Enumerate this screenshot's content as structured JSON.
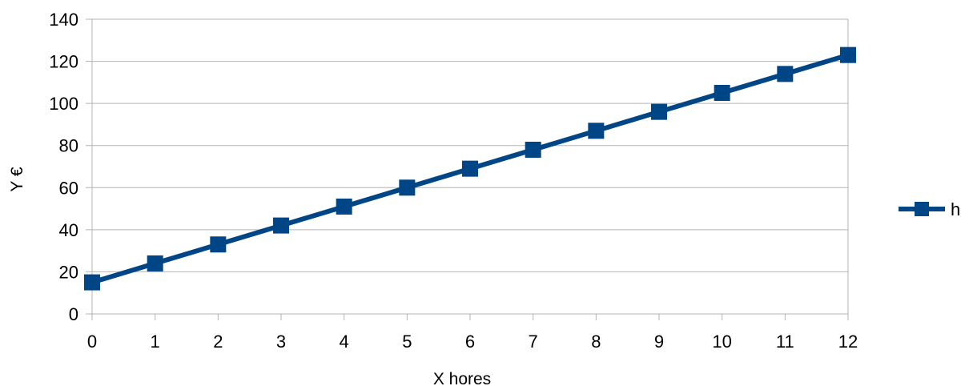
{
  "chart_data": {
    "type": "line",
    "title": "",
    "xlabel": "X hores",
    "ylabel": "Y €",
    "x": [
      0,
      1,
      2,
      3,
      4,
      5,
      6,
      7,
      8,
      9,
      10,
      11,
      12
    ],
    "xlim": [
      0,
      12
    ],
    "ylim": [
      0,
      140
    ],
    "yticks": [
      0,
      20,
      40,
      60,
      80,
      100,
      120,
      140
    ],
    "grid": "horizontal",
    "legend_position": "right",
    "series": [
      {
        "name": "h",
        "color": "#004586",
        "marker": "square",
        "values": [
          15,
          24,
          33,
          42,
          51,
          60,
          69,
          78,
          87,
          96,
          105,
          114,
          123
        ]
      }
    ]
  }
}
